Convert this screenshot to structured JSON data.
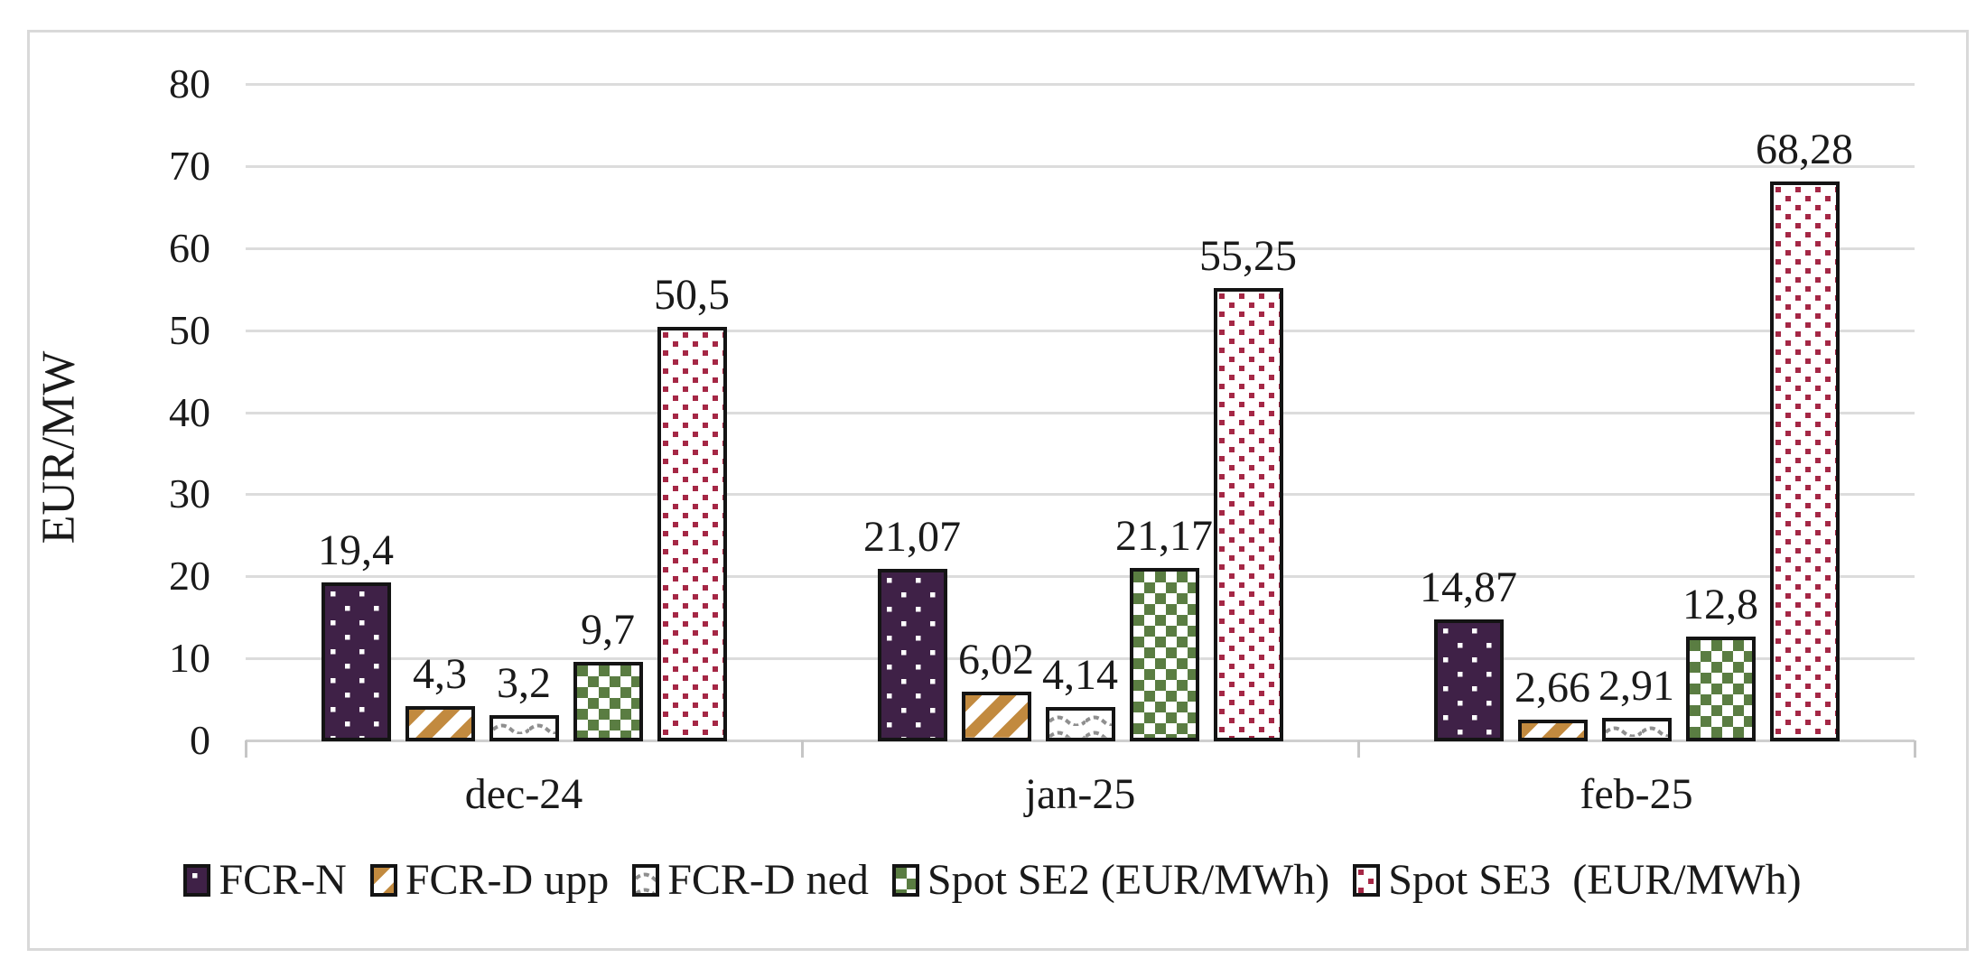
{
  "chart_data": {
    "type": "bar",
    "title": "",
    "xlabel": "",
    "ylabel": "EUR/MW",
    "ylim": [
      0,
      80
    ],
    "yticks": [
      0,
      10,
      20,
      30,
      40,
      50,
      60,
      70,
      80
    ],
    "grid": "horizontal",
    "legend_position": "bottom",
    "decimal_separator": ",",
    "categories": [
      "dec-24",
      "jan-25",
      "feb-25"
    ],
    "series": [
      {
        "name": "FCR-N",
        "color": "#3f2147",
        "pattern": "white-dots-on-purple",
        "values": [
          19.4,
          21.07,
          14.87
        ],
        "labels": [
          "19,4",
          "21,07",
          "14,87"
        ]
      },
      {
        "name": "FCR-D upp",
        "color": "#c28a3f",
        "pattern": "orange-diagonal-stripes",
        "values": [
          4.3,
          6.02,
          2.66
        ],
        "labels": [
          "4,3",
          "6,02",
          "2,66"
        ]
      },
      {
        "name": "FCR-D ned",
        "color": "#8f8f8f",
        "pattern": "gray-dashed-waves",
        "values": [
          3.2,
          4.14,
          2.91
        ],
        "labels": [
          "3,2",
          "4,14",
          "2,91"
        ]
      },
      {
        "name": "Spot SE2 (EUR/MWh)",
        "color": "#5a7d42",
        "pattern": "green-checkerboard",
        "values": [
          9.7,
          21.17,
          12.8
        ],
        "labels": [
          "9,7",
          "21,17",
          "12,8"
        ]
      },
      {
        "name": "Spot SE3  (EUR/MWh)",
        "color": "#a52745",
        "pattern": "red-square-dots",
        "values": [
          50.5,
          55.25,
          68.28
        ],
        "labels": [
          "50,5",
          "55,25",
          "68,28"
        ]
      }
    ],
    "colors": {
      "bar_outline": "#141414",
      "gridline": "#dcdcdc",
      "frame_border": "#d9d9d9",
      "text": "#1a1a1a"
    }
  }
}
